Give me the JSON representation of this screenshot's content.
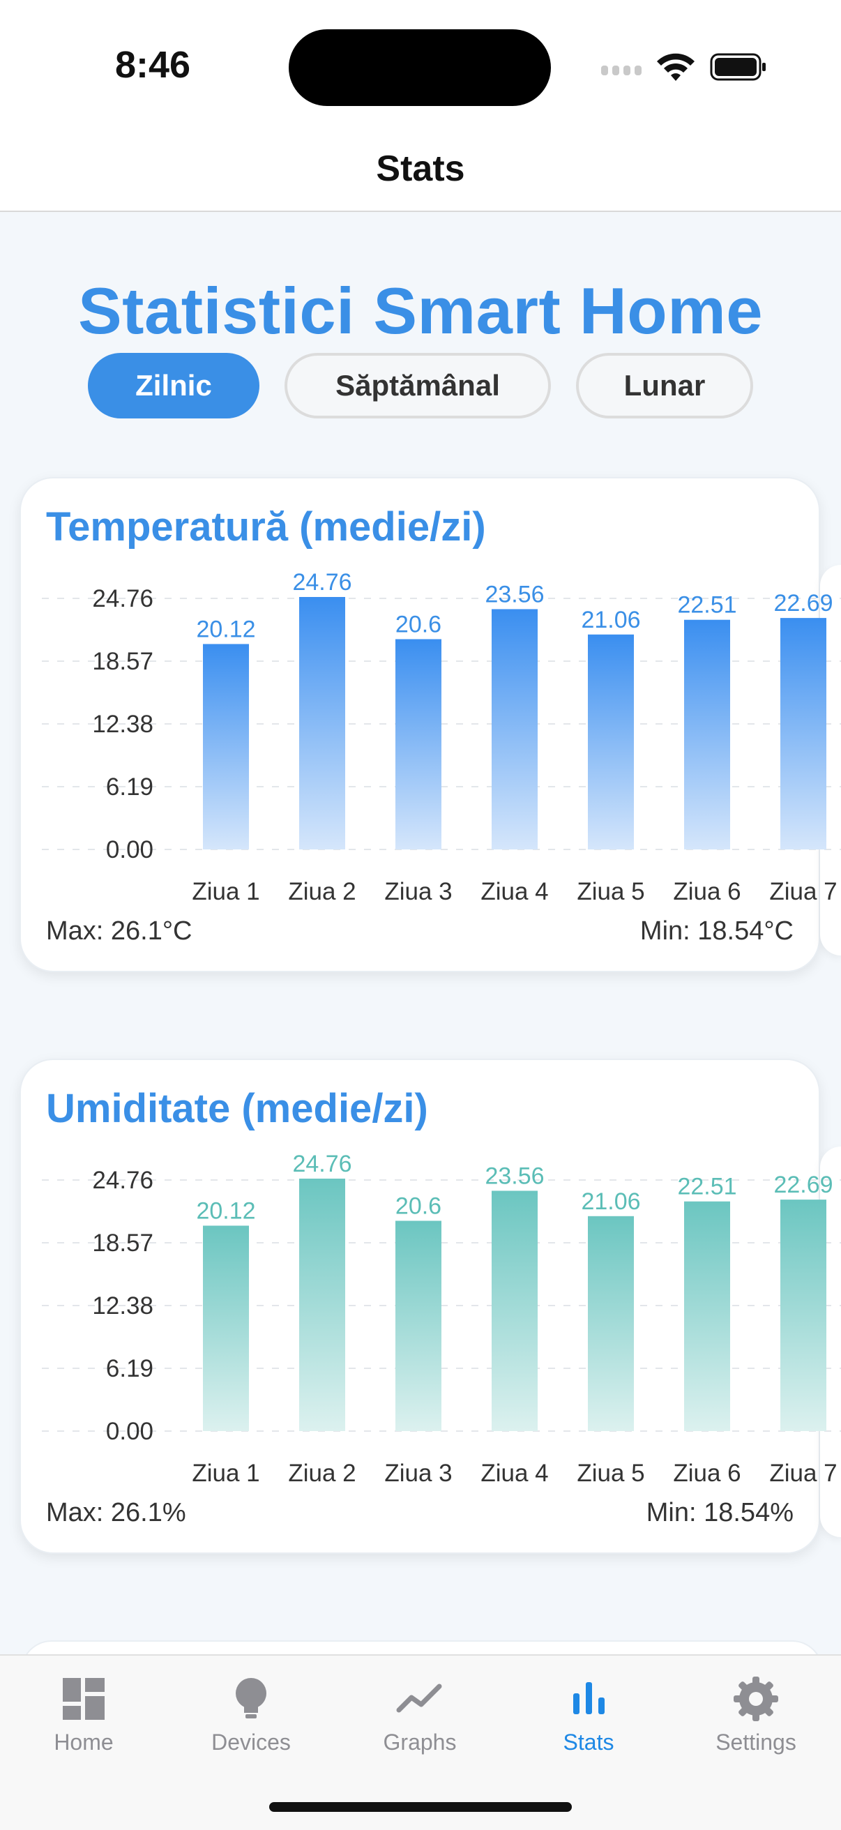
{
  "status_bar": {
    "time": "8:46"
  },
  "nav": {
    "title": "Stats"
  },
  "page": {
    "heading": "Statistici Smart Home"
  },
  "tabs_period": [
    {
      "label": "Zilnic",
      "active": true
    },
    {
      "label": "Săptămânal",
      "active": false
    },
    {
      "label": "Lunar",
      "active": false
    }
  ],
  "cards": [
    {
      "title": "Temperatură (medie/zi)",
      "max_label": "Max: 26.1°C",
      "min_label": "Min: 18.54°C",
      "color_top": "#3b8ff0",
      "color_bottom": "#d5e6fb",
      "value_color": "#3a8fe6"
    },
    {
      "title": "Umiditate (medie/zi)",
      "max_label": "Max: 26.1%",
      "min_label": "Min: 18.54%",
      "color_top": "#6cc6c1",
      "color_bottom": "#dcf1ef",
      "value_color": "#5bbdb6"
    }
  ],
  "chart_data": [
    {
      "type": "bar",
      "categories": [
        "Ziua 1",
        "Ziua 2",
        "Ziua 3",
        "Ziua 4",
        "Ziua 5",
        "Ziua 6",
        "Ziua 7"
      ],
      "values": [
        20.12,
        24.76,
        20.6,
        23.56,
        21.06,
        22.51,
        22.69
      ],
      "value_labels": [
        "20.12",
        "24.76",
        "20.6",
        "23.56",
        "21.06",
        "22.51",
        "22.69"
      ],
      "y_ticks": [
        "0.00",
        "6.19",
        "12.38",
        "18.57",
        "24.76"
      ],
      "ylim": [
        0,
        24.76
      ],
      "grid": true
    },
    {
      "type": "bar",
      "categories": [
        "Ziua 1",
        "Ziua 2",
        "Ziua 3",
        "Ziua 4",
        "Ziua 5",
        "Ziua 6",
        "Ziua 7"
      ],
      "values": [
        20.12,
        24.76,
        20.6,
        23.56,
        21.06,
        22.51,
        22.69
      ],
      "value_labels": [
        "20.12",
        "24.76",
        "20.6",
        "23.56",
        "21.06",
        "22.51",
        "22.69"
      ],
      "y_ticks": [
        "0.00",
        "6.19",
        "12.38",
        "18.57",
        "24.76"
      ],
      "ylim": [
        0,
        24.76
      ],
      "grid": true
    }
  ],
  "tabbar": {
    "items": [
      {
        "label": "Home",
        "icon": "dashboard-icon",
        "active": false
      },
      {
        "label": "Devices",
        "icon": "lightbulb-icon",
        "active": false
      },
      {
        "label": "Graphs",
        "icon": "line-chart-icon",
        "active": false
      },
      {
        "label": "Stats",
        "icon": "bar-chart-icon",
        "active": true
      },
      {
        "label": "Settings",
        "icon": "gear-icon",
        "active": false
      }
    ],
    "active_color": "#1e88e5",
    "inactive_color": "#8e8e93"
  }
}
